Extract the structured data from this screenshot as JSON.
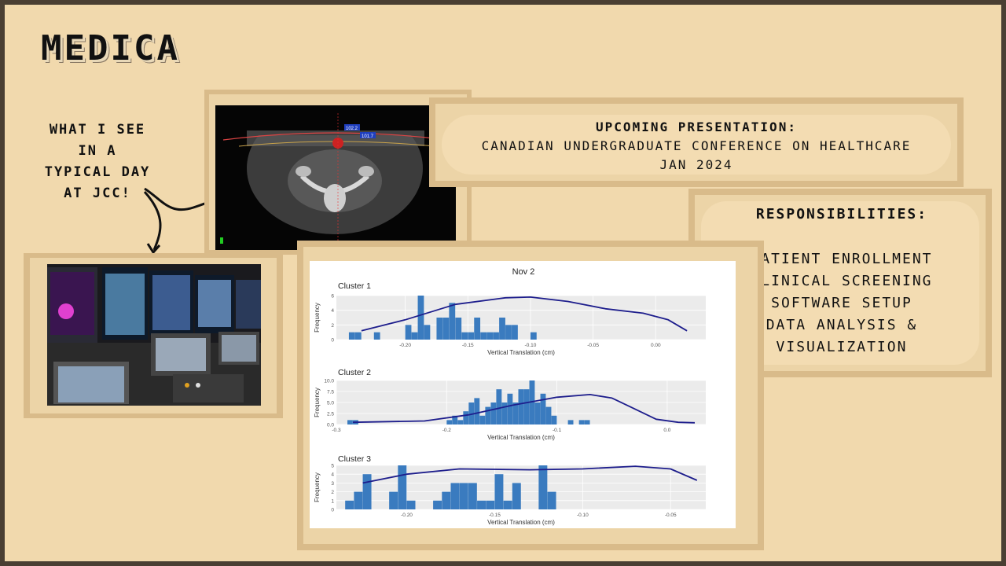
{
  "slide": {
    "title": "MEDICA",
    "note_lines": [
      "WHAT I SEE",
      "IN A",
      "TYPICAL DAY",
      "AT JCC!"
    ]
  },
  "presentation_card": {
    "heading": "UPCOMING PRESENTATION:",
    "line1": "CANADIAN UNDERGRADUATE CONFERENCE ON HEALTHCARE",
    "line2": "JAN 2024"
  },
  "responsibilities": {
    "heading": "RESPONSIBILITIES:",
    "items": [
      "PATIENT ENROLLMENT",
      "CLINICAL SCREENING",
      "SOFTWARE SETUP",
      "DATA ANALYSIS &",
      "VISUALIZATION"
    ]
  },
  "ct_image": {
    "labels": [
      "102.2",
      "101.7"
    ]
  },
  "colors": {
    "background": "#f1d9ad",
    "frame": "#d9bb8a",
    "bar": "#3a7bbf",
    "curve": "#1d1d8c"
  },
  "chart_data": [
    {
      "type": "bar",
      "title": "Nov 2",
      "subtitle": "Cluster 1",
      "xlabel": "Vertical Translation (cm)",
      "ylabel": "Frequency",
      "xlim": [
        -0.255,
        0.04
      ],
      "ylim": [
        0,
        6
      ],
      "yticks": [
        0,
        2,
        4,
        6
      ],
      "xticks": [
        -0.2,
        -0.15,
        -0.1,
        -0.05,
        0.0
      ],
      "xtick_labels": [
        "-0.20",
        "-0.15",
        "-0.10",
        "-0.05",
        "0.00"
      ],
      "bin_start": -0.245,
      "bin_width": 0.005,
      "values": [
        1,
        1,
        0,
        0,
        1,
        0,
        0,
        0,
        0,
        2,
        1,
        6,
        2,
        0,
        3,
        3,
        5,
        3,
        1,
        1,
        3,
        1,
        1,
        1,
        3,
        2,
        2,
        0,
        0,
        1
      ],
      "curve": [
        [
          -0.235,
          1.2
        ],
        [
          -0.2,
          2.7
        ],
        [
          -0.16,
          4.8
        ],
        [
          -0.12,
          5.7
        ],
        [
          -0.1,
          5.8
        ],
        [
          -0.07,
          5.2
        ],
        [
          -0.04,
          4.2
        ],
        [
          -0.01,
          3.6
        ],
        [
          0.01,
          2.7
        ],
        [
          0.025,
          1.2
        ]
      ]
    },
    {
      "type": "bar",
      "subtitle": "Cluster 2",
      "xlabel": "Vertical Translation (cm)",
      "ylabel": "Frequency",
      "xlim": [
        -0.3,
        0.035
      ],
      "ylim": [
        0,
        10
      ],
      "yticks": [
        0.0,
        2.5,
        5.0,
        7.5,
        10.0
      ],
      "ytick_labels": [
        "0.0",
        "2.5",
        "5.0",
        "7.5",
        "10.0"
      ],
      "xticks": [
        -0.3,
        -0.2,
        -0.1,
        0.0
      ],
      "xtick_labels": [
        "-0.3",
        "-0.2",
        "-0.1",
        "0.0"
      ],
      "bin_start": -0.29,
      "bin_width": 0.005,
      "values": [
        1,
        1,
        0,
        0,
        0,
        0,
        0,
        0,
        0,
        0,
        0,
        0,
        0,
        0,
        0,
        0,
        0,
        0,
        1,
        2,
        1,
        3,
        5,
        6,
        2,
        4,
        5,
        8,
        5,
        7,
        5,
        8,
        8,
        10,
        5,
        7,
        4,
        2,
        0,
        0,
        1,
        0,
        1,
        1
      ],
      "curve": [
        [
          -0.285,
          0.5
        ],
        [
          -0.22,
          0.8
        ],
        [
          -0.18,
          2.2
        ],
        [
          -0.14,
          4.4
        ],
        [
          -0.1,
          6.2
        ],
        [
          -0.07,
          6.8
        ],
        [
          -0.05,
          6.0
        ],
        [
          -0.03,
          3.6
        ],
        [
          -0.01,
          1.2
        ],
        [
          0.01,
          0.5
        ],
        [
          0.025,
          0.4
        ]
      ]
    },
    {
      "type": "bar",
      "subtitle": "Cluster 3",
      "xlabel": "Vertical Translation (cm)",
      "ylabel": "Frequency",
      "xlim": [
        -0.24,
        -0.03
      ],
      "ylim": [
        0,
        5
      ],
      "yticks": [
        0,
        1,
        2,
        3,
        4,
        5
      ],
      "xticks": [
        -0.2,
        -0.15,
        -0.1,
        -0.05
      ],
      "xtick_labels": [
        "-0.20",
        "-0.15",
        "-0.10",
        "-0.05"
      ],
      "bin_start": -0.235,
      "bin_width": 0.005,
      "values": [
        1,
        2,
        4,
        0,
        0,
        2,
        5,
        1,
        0,
        0,
        1,
        2,
        3,
        3,
        3,
        1,
        1,
        4,
        1,
        3,
        0,
        0,
        5,
        2
      ],
      "curve": [
        [
          -0.225,
          3.0
        ],
        [
          -0.2,
          4.0
        ],
        [
          -0.17,
          4.6
        ],
        [
          -0.13,
          4.5
        ],
        [
          -0.1,
          4.6
        ],
        [
          -0.07,
          4.9
        ],
        [
          -0.05,
          4.6
        ],
        [
          -0.035,
          3.3
        ]
      ]
    }
  ]
}
